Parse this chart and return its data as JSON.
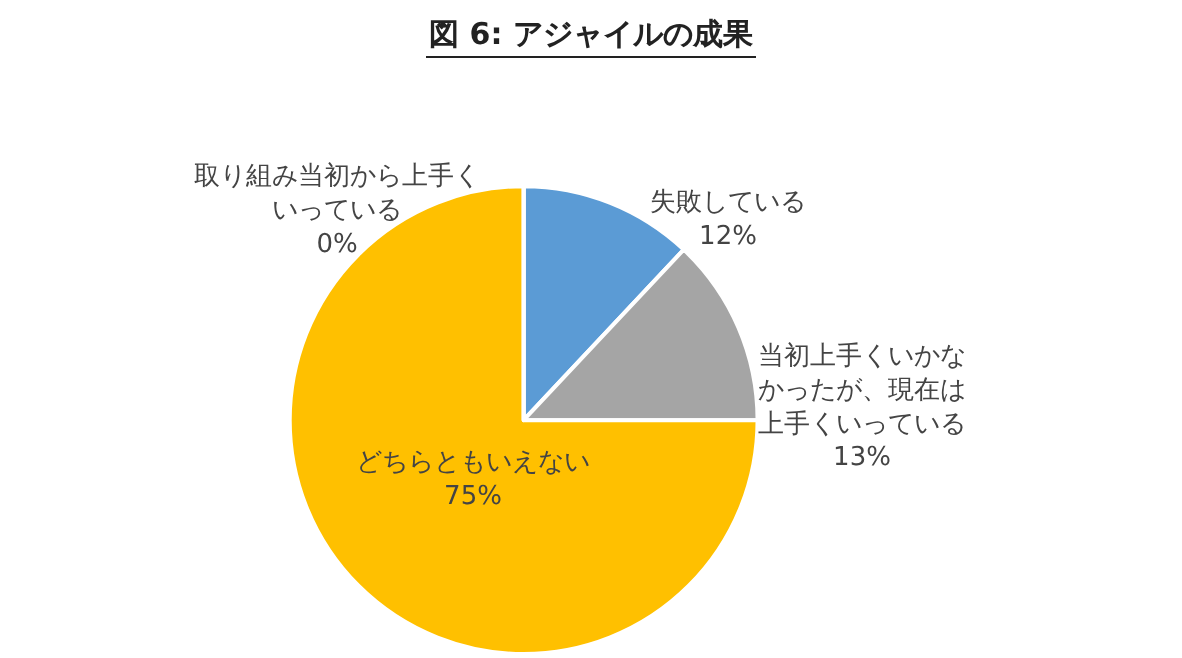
{
  "chart_data": {
    "type": "pie",
    "title": "図 6:  アジャイルの成果",
    "categories": [
      "失敗している",
      "当初上手くいかなかったが、現在は上手くいっている",
      "どちらともいえない",
      "取り組み当初から上手くいっている"
    ],
    "values": [
      12,
      13,
      75,
      0
    ],
    "value_labels": [
      "12%",
      "13%",
      "75%",
      "0%"
    ],
    "colors": [
      "#5b9bd5",
      "#a5a5a5",
      "#ffc000",
      "#ed7d31"
    ],
    "legend": false
  }
}
